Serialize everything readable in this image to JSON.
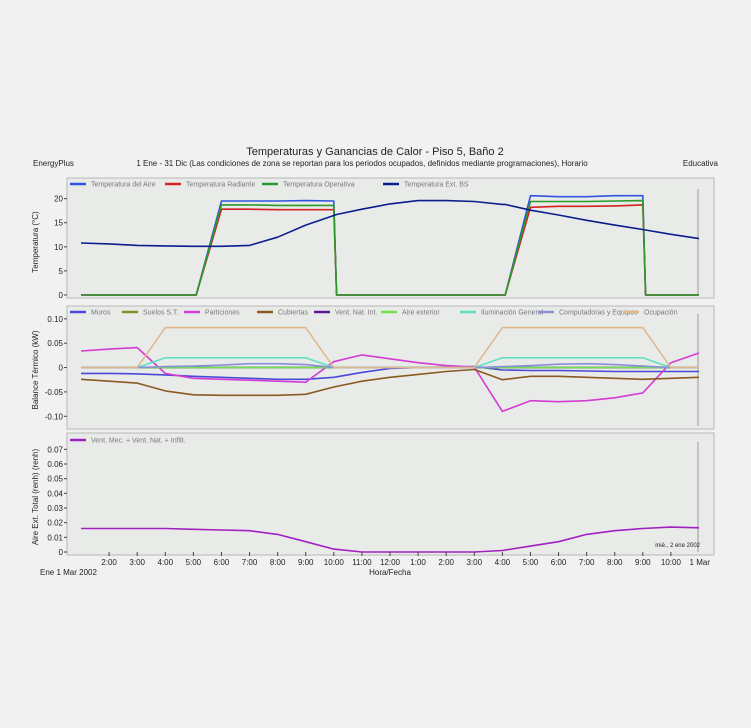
{
  "header": {
    "title": "Temperaturas y Ganancias de Calor - Piso 5, Baño  2",
    "subtitle": "1 Ene - 31 Dic (Las condiciones de zona se reportan para los periodos ocupados, definidos mediante programaciones), Horario",
    "left_label": "EnergyPlus",
    "right_label": "Educativa"
  },
  "footer": {
    "xlabel": "Hora/Fecha",
    "start_date": "Ene  1 Mar 2002",
    "end_date": "1 Mar",
    "note": "mié., 2 ene 2002"
  },
  "colors": {
    "air": "#2f55e0",
    "radiant": "#d42020",
    "operative": "#2a9a2a",
    "ext": "#0a1e8c",
    "muros": "#4a4ad8",
    "suelos": "#8a8a30",
    "particiones": "#d43cd4",
    "cubiertas": "#8a5a20",
    "vent": "#5a1a9a",
    "aire_ext": "#70e050",
    "iluminacion": "#60e0c0",
    "computadoras": "#8a90d8",
    "ocupacion": "#e0b890",
    "ventmec": "#a020c0"
  },
  "chart_data": [
    {
      "type": "line",
      "ylabel": "Temperatura (°C)",
      "ylim": [
        0,
        22
      ],
      "yticks": [
        "0",
        "5",
        "10",
        "15",
        "20"
      ],
      "x": [
        0,
        1,
        2,
        3,
        4,
        4.1,
        5,
        6,
        7,
        8,
        9,
        9.1,
        10,
        11,
        12,
        13,
        14,
        15,
        15.1,
        16,
        17,
        18,
        19,
        20,
        20.1,
        21,
        22
      ],
      "series": [
        {
          "name": "Temperatura del Aire",
          "color_key": "air",
          "values": [
            0,
            0,
            0,
            0,
            0,
            0,
            19.5,
            19.5,
            19.5,
            19.6,
            19.5,
            0,
            0,
            0,
            0,
            0,
            0,
            0,
            0,
            20.6,
            20.4,
            20.4,
            20.6,
            20.6,
            0,
            0,
            0
          ]
        },
        {
          "name": "Temperatura Radiante",
          "color_key": "radiant",
          "values": [
            0,
            0,
            0,
            0,
            0,
            0,
            17.8,
            17.8,
            17.7,
            17.7,
            17.7,
            0,
            0,
            0,
            0,
            0,
            0,
            0,
            0,
            18.2,
            18.4,
            18.4,
            18.5,
            18.7,
            0,
            0,
            0
          ]
        },
        {
          "name": "Temperatura Operativa",
          "color_key": "operative",
          "values": [
            0,
            0,
            0,
            0,
            0,
            0,
            18.7,
            18.7,
            18.6,
            18.6,
            18.6,
            0,
            0,
            0,
            0,
            0,
            0,
            0,
            0,
            19.4,
            19.4,
            19.4,
            19.5,
            19.6,
            0,
            0,
            0
          ]
        },
        {
          "name": "Temperatura Ext. BS",
          "color_key": "ext",
          "values": [
            10.8,
            10.6,
            10.3,
            10.2,
            10.1,
            10.1,
            10.1,
            10.3,
            12.0,
            14.5,
            16.5,
            16.7,
            17.8,
            18.9,
            19.6,
            19.6,
            19.4,
            18.8,
            18.8,
            17.6,
            16.6,
            15.5,
            14.5,
            13.6,
            13.5,
            12.6,
            11.7
          ]
        }
      ]
    },
    {
      "type": "line",
      "ylabel": "Balance Térmico (kW)",
      "ylim": [
        -0.12,
        0.11
      ],
      "yticks": [
        "0.10",
        "0.05",
        "0",
        "-0.05",
        "-0.10"
      ],
      "x": [
        0,
        1,
        2,
        3,
        4,
        5,
        6,
        7,
        8,
        9,
        10,
        11,
        12,
        13,
        14,
        15,
        16,
        17,
        18,
        19,
        20,
        21,
        22
      ],
      "series": [
        {
          "name": "Muros",
          "color_key": "muros",
          "values": [
            -0.012,
            -0.012,
            -0.013,
            -0.015,
            -0.018,
            -0.02,
            -0.022,
            -0.024,
            -0.024,
            -0.02,
            -0.01,
            -0.002,
            0.0,
            0.001,
            0.002,
            -0.005,
            -0.006,
            -0.006,
            -0.007,
            -0.008,
            -0.008,
            -0.008,
            -0.008
          ]
        },
        {
          "name": "Suelos S.T.",
          "color_key": "suelos",
          "values": [
            0,
            0,
            0,
            0,
            0,
            0,
            0,
            0,
            0,
            0,
            0,
            0,
            0,
            0,
            0,
            0,
            0,
            0,
            0,
            0,
            0,
            0,
            0
          ]
        },
        {
          "name": "Particiones",
          "color_key": "particiones",
          "values": [
            0.034,
            0.038,
            0.041,
            -0.012,
            -0.022,
            -0.024,
            -0.026,
            -0.028,
            -0.03,
            0.012,
            0.026,
            0.018,
            0.01,
            0.004,
            0.001,
            -0.09,
            -0.068,
            -0.07,
            -0.068,
            -0.062,
            -0.052,
            0.01,
            0.03
          ]
        },
        {
          "name": "Cubiertas",
          "color_key": "cubiertas",
          "values": [
            -0.024,
            -0.028,
            -0.032,
            -0.048,
            -0.056,
            -0.057,
            -0.057,
            -0.057,
            -0.055,
            -0.04,
            -0.028,
            -0.02,
            -0.014,
            -0.008,
            -0.004,
            -0.025,
            -0.018,
            -0.018,
            -0.02,
            -0.022,
            -0.024,
            -0.022,
            -0.02
          ]
        },
        {
          "name": "Vent. Nat. Int.",
          "color_key": "vent",
          "values": [
            0,
            0,
            0,
            0,
            0,
            0,
            0,
            0,
            0,
            0,
            0,
            0,
            0,
            0,
            0,
            0,
            0,
            0,
            0,
            0,
            0,
            0,
            0
          ]
        },
        {
          "name": "Aire exterior",
          "color_key": "aire_ext",
          "values": [
            0,
            0,
            0,
            0,
            0,
            0,
            0,
            0,
            0,
            0,
            0,
            0,
            0,
            0,
            0,
            0,
            0,
            0,
            0,
            0,
            0,
            0,
            0
          ]
        },
        {
          "name": "Iluminación General",
          "color_key": "iluminacion",
          "values": [
            0,
            0,
            0,
            0.02,
            0.02,
            0.02,
            0.02,
            0.02,
            0.02,
            0,
            0,
            0,
            0,
            0,
            0,
            0.02,
            0.02,
            0.02,
            0.02,
            0.02,
            0.02,
            0,
            0
          ]
        },
        {
          "name": "Computadoras y Equipos",
          "color_key": "computadoras",
          "values": [
            0,
            0,
            0,
            0.002,
            0.003,
            0.005,
            0.008,
            0.008,
            0.006,
            0,
            0,
            0,
            0,
            0,
            0,
            0.002,
            0.004,
            0.007,
            0.008,
            0.006,
            0.003,
            0,
            0
          ]
        },
        {
          "name": "Ocupación",
          "color_key": "ocupacion",
          "values": [
            0,
            0,
            0,
            0.082,
            0.082,
            0.082,
            0.082,
            0.082,
            0.082,
            0,
            0,
            0,
            0,
            0,
            0,
            0.082,
            0.082,
            0.082,
            0.082,
            0.082,
            0.082,
            0,
            0
          ]
        }
      ]
    },
    {
      "type": "line",
      "ylabel": "Aire Ext. Total (renh) (renh)",
      "ylim": [
        0,
        0.075
      ],
      "yticks": [
        "0",
        "0.01",
        "0.02",
        "0.03",
        "0.04",
        "0.05",
        "0.06",
        "0.07"
      ],
      "x": [
        0,
        1,
        2,
        3,
        4,
        5,
        6,
        7,
        8,
        9,
        10,
        11,
        12,
        13,
        14,
        15,
        16,
        17,
        18,
        19,
        20,
        21,
        22
      ],
      "series": [
        {
          "name": "Vent. Mec. + Vent. Nat. + Infilt.",
          "color_key": "ventmec",
          "values": [
            0.016,
            0.016,
            0.016,
            0.016,
            0.0155,
            0.015,
            0.0145,
            0.012,
            0.007,
            0.002,
            0.0,
            0.0,
            0.0,
            0.0,
            0.0,
            0.001,
            0.004,
            0.007,
            0.012,
            0.0145,
            0.016,
            0.017,
            0.0165
          ]
        }
      ]
    }
  ],
  "x_axis": {
    "ticks": [
      "2:00",
      "3:00",
      "4:00",
      "5:00",
      "6:00",
      "7:00",
      "8:00",
      "9:00",
      "10:00",
      "11:00",
      "12:00",
      "1:00",
      "2:00",
      "3:00",
      "4:00",
      "5:00",
      "6:00",
      "7:00",
      "8:00",
      "9:00",
      "10:00"
    ]
  }
}
